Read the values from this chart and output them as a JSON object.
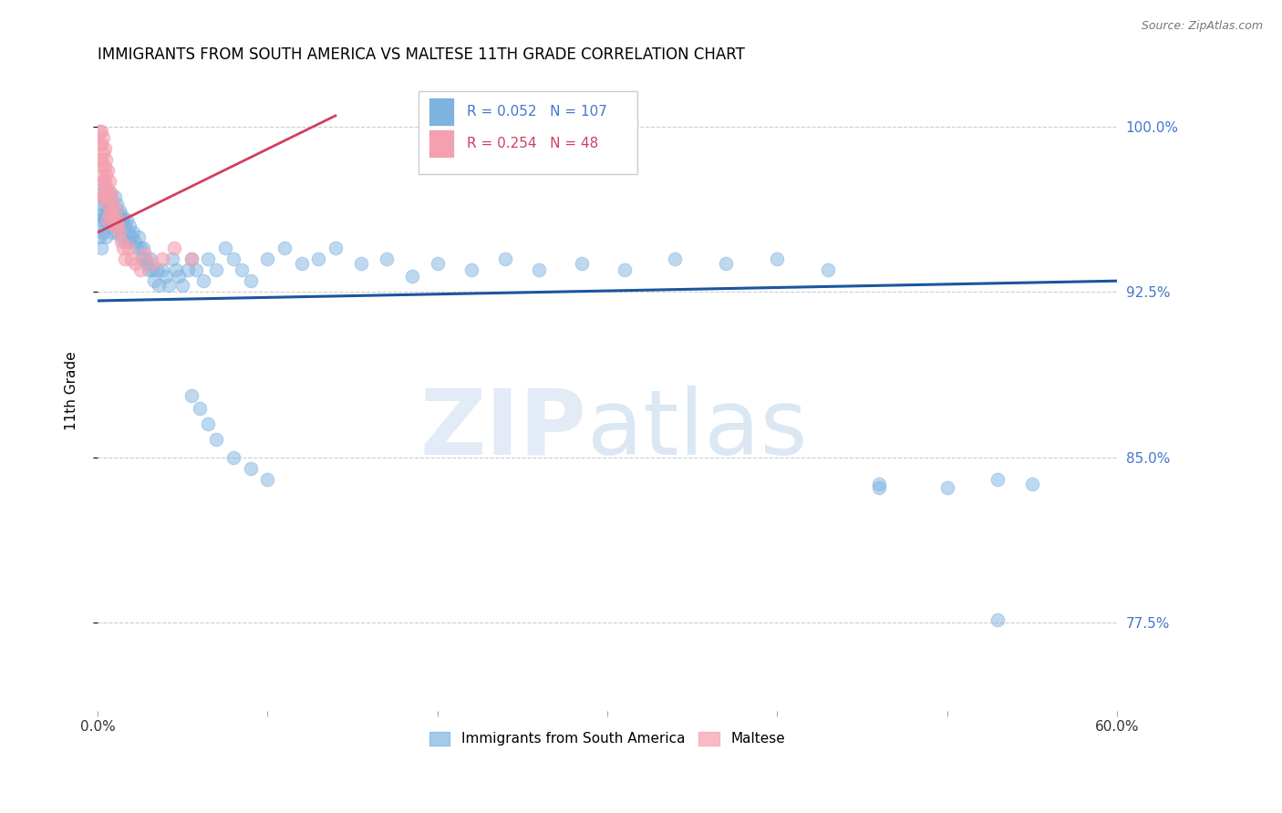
{
  "title": "IMMIGRANTS FROM SOUTH AMERICA VS MALTESE 11TH GRADE CORRELATION CHART",
  "source": "Source: ZipAtlas.com",
  "ylabel": "11th Grade",
  "xlim": [
    0.0,
    0.6
  ],
  "ylim": [
    0.735,
    1.025
  ],
  "ytick_vals": [
    0.775,
    0.85,
    0.925,
    1.0
  ],
  "ytick_labels": [
    "77.5%",
    "85.0%",
    "92.5%",
    "100.0%"
  ],
  "xtick_vals": [
    0.0,
    0.1,
    0.2,
    0.3,
    0.4,
    0.5,
    0.6
  ],
  "xtick_labels": [
    "0.0%",
    "",
    "",
    "",
    "",
    "",
    "60.0%"
  ],
  "blue_R": "0.052",
  "blue_N": "107",
  "pink_R": "0.254",
  "pink_N": "48",
  "blue_color": "#7fb3e0",
  "pink_color": "#f4a0b0",
  "blue_line_color": "#1a56a0",
  "pink_line_color": "#d04060",
  "legend_label_blue": "Immigrants from South America",
  "legend_label_pink": "Maltese",
  "blue_trend_x0": 0.0,
  "blue_trend_x1": 0.6,
  "blue_trend_y0": 0.921,
  "blue_trend_y1": 0.93,
  "pink_trend_x0": 0.0,
  "pink_trend_x1": 0.14,
  "pink_trend_y0": 0.952,
  "pink_trend_y1": 1.005,
  "blue_x": [
    0.001,
    0.001,
    0.001,
    0.002,
    0.002,
    0.002,
    0.002,
    0.003,
    0.003,
    0.003,
    0.003,
    0.004,
    0.004,
    0.004,
    0.005,
    0.005,
    0.005,
    0.006,
    0.006,
    0.007,
    0.007,
    0.007,
    0.008,
    0.008,
    0.009,
    0.009,
    0.01,
    0.01,
    0.011,
    0.011,
    0.012,
    0.012,
    0.013,
    0.013,
    0.014,
    0.014,
    0.015,
    0.016,
    0.016,
    0.017,
    0.018,
    0.018,
    0.019,
    0.02,
    0.021,
    0.022,
    0.023,
    0.024,
    0.025,
    0.026,
    0.027,
    0.028,
    0.029,
    0.03,
    0.031,
    0.032,
    0.033,
    0.035,
    0.036,
    0.038,
    0.04,
    0.042,
    0.044,
    0.046,
    0.048,
    0.05,
    0.053,
    0.055,
    0.058,
    0.062,
    0.065,
    0.07,
    0.075,
    0.08,
    0.085,
    0.09,
    0.1,
    0.11,
    0.12,
    0.13,
    0.14,
    0.155,
    0.17,
    0.185,
    0.2,
    0.22,
    0.24,
    0.26,
    0.285,
    0.31,
    0.34,
    0.37,
    0.4,
    0.43,
    0.46,
    0.5,
    0.53,
    0.55,
    0.46,
    0.53,
    0.055,
    0.06,
    0.065,
    0.07,
    0.08,
    0.09,
    0.1
  ],
  "blue_y": [
    0.96,
    0.955,
    0.95,
    0.97,
    0.965,
    0.958,
    0.945,
    0.975,
    0.968,
    0.96,
    0.952,
    0.972,
    0.965,
    0.958,
    0.968,
    0.96,
    0.95,
    0.965,
    0.958,
    0.97,
    0.962,
    0.955,
    0.965,
    0.958,
    0.96,
    0.952,
    0.968,
    0.96,
    0.965,
    0.955,
    0.96,
    0.952,
    0.962,
    0.955,
    0.96,
    0.95,
    0.958,
    0.955,
    0.948,
    0.958,
    0.952,
    0.948,
    0.955,
    0.95,
    0.952,
    0.948,
    0.945,
    0.95,
    0.945,
    0.94,
    0.945,
    0.94,
    0.938,
    0.935,
    0.94,
    0.935,
    0.93,
    0.935,
    0.928,
    0.935,
    0.932,
    0.928,
    0.94,
    0.935,
    0.932,
    0.928,
    0.935,
    0.94,
    0.935,
    0.93,
    0.94,
    0.935,
    0.945,
    0.94,
    0.935,
    0.93,
    0.94,
    0.945,
    0.938,
    0.94,
    0.945,
    0.938,
    0.94,
    0.932,
    0.938,
    0.935,
    0.94,
    0.935,
    0.938,
    0.935,
    0.94,
    0.938,
    0.94,
    0.935,
    0.838,
    0.836,
    0.84,
    0.838,
    0.836,
    0.776,
    0.878,
    0.872,
    0.865,
    0.858,
    0.85,
    0.845,
    0.84
  ],
  "pink_x": [
    0.001,
    0.001,
    0.001,
    0.002,
    0.002,
    0.002,
    0.002,
    0.002,
    0.003,
    0.003,
    0.003,
    0.003,
    0.003,
    0.004,
    0.004,
    0.004,
    0.004,
    0.005,
    0.005,
    0.005,
    0.006,
    0.006,
    0.006,
    0.006,
    0.007,
    0.007,
    0.007,
    0.008,
    0.008,
    0.009,
    0.009,
    0.01,
    0.01,
    0.011,
    0.012,
    0.013,
    0.014,
    0.015,
    0.016,
    0.018,
    0.02,
    0.022,
    0.025,
    0.028,
    0.032,
    0.038,
    0.045,
    0.055
  ],
  "pink_y": [
    0.998,
    0.992,
    0.985,
    0.998,
    0.992,
    0.985,
    0.978,
    0.97,
    0.995,
    0.988,
    0.982,
    0.975,
    0.968,
    0.99,
    0.982,
    0.975,
    0.968,
    0.985,
    0.978,
    0.97,
    0.98,
    0.972,
    0.965,
    0.958,
    0.975,
    0.968,
    0.96,
    0.97,
    0.962,
    0.965,
    0.958,
    0.962,
    0.955,
    0.958,
    0.955,
    0.952,
    0.948,
    0.945,
    0.94,
    0.945,
    0.94,
    0.938,
    0.935,
    0.942,
    0.938,
    0.94,
    0.945,
    0.94
  ]
}
